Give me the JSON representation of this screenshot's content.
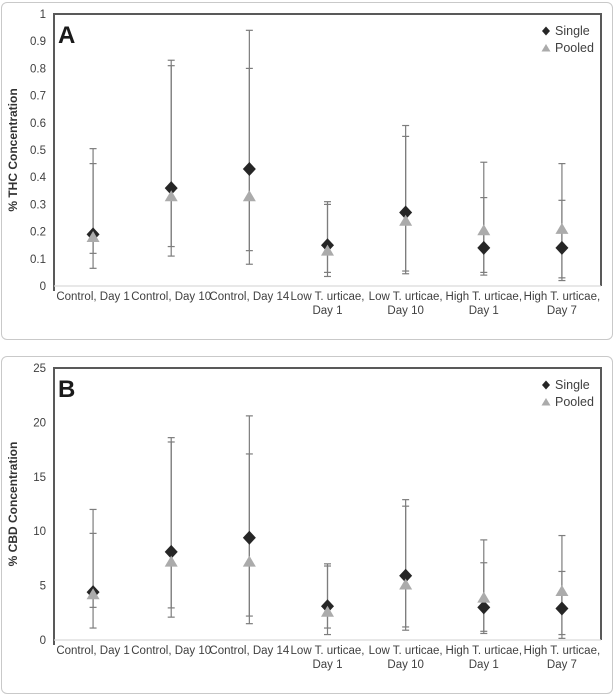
{
  "figure": {
    "background": "#ffffff",
    "panel_border_color": "#c9c9c9"
  },
  "chart_data": [
    {
      "type": "scatter",
      "panel_label": "A",
      "ylabel": "% THC Concentration",
      "ylim": [
        0,
        1
      ],
      "ytick_values": [
        0,
        0.1,
        0.2,
        0.3,
        0.4,
        0.5,
        0.6,
        0.7,
        0.8,
        0.9,
        1
      ],
      "ytick_labels": [
        "0",
        "0.1",
        "0.2",
        "0.3",
        "0.4",
        "0.5",
        "0.6",
        "0.7",
        "0.8",
        "0.9",
        "1"
      ],
      "grid": false,
      "legend_position": "top-right",
      "categories": [
        [
          "Control, Day 1"
        ],
        [
          "Control, Day 10"
        ],
        [
          "Control, Day 14"
        ],
        [
          "Low T. urticae,",
          "Day 1"
        ],
        [
          "Low T. urticae,",
          "Day 10"
        ],
        [
          "High T. urticae,",
          "Day 1"
        ],
        [
          "High T. urticae,",
          "Day 7"
        ]
      ],
      "series": [
        {
          "name": "Single",
          "marker": "diamond",
          "color": "#262626",
          "values": [
            0.19,
            0.36,
            0.43,
            0.15,
            0.27,
            0.14,
            0.14
          ],
          "error_low": [
            0.065,
            0.11,
            0.08,
            0.035,
            0.055,
            0.04,
            0.02
          ],
          "error_high": [
            0.505,
            0.83,
            0.94,
            0.31,
            0.59,
            0.325,
            0.315
          ]
        },
        {
          "name": "Pooled",
          "marker": "triangle",
          "color": "#ababab",
          "values": [
            0.18,
            0.33,
            0.33,
            0.13,
            0.24,
            0.205,
            0.21
          ],
          "error_low": [
            0.12,
            0.145,
            0.13,
            0.05,
            0.045,
            0.05,
            0.03
          ],
          "error_high": [
            0.45,
            0.81,
            0.8,
            0.3,
            0.55,
            0.455,
            0.45
          ]
        }
      ],
      "colors": {
        "axis": "#595959",
        "axis_bottom": "#d9d9d9",
        "error_bar": "#7d7d7d",
        "text": "#404040",
        "panel_label": "#1a1a1a"
      }
    },
    {
      "type": "scatter",
      "panel_label": "B",
      "ylabel": "% CBD Concentration",
      "ylim": [
        0,
        25
      ],
      "ytick_values": [
        0,
        5,
        10,
        15,
        20,
        25
      ],
      "ytick_labels": [
        "0",
        "5",
        "10",
        "15",
        "20",
        "25"
      ],
      "grid": false,
      "legend_position": "top-right",
      "categories": [
        [
          "Control, Day 1"
        ],
        [
          "Control, Day 10"
        ],
        [
          "Control, Day 14"
        ],
        [
          "Low T. urticae,",
          "Day 1"
        ],
        [
          "Low T. urticae,",
          "Day 10"
        ],
        [
          "High T. urticae,",
          "Day 1"
        ],
        [
          "High T. urticae,",
          "Day 7"
        ]
      ],
      "series": [
        {
          "name": "Single",
          "marker": "diamond",
          "color": "#262626",
          "values": [
            4.4,
            8.1,
            9.4,
            3.1,
            5.9,
            3.0,
            2.9
          ],
          "error_low": [
            1.1,
            2.1,
            1.5,
            0.5,
            0.9,
            0.6,
            0.15
          ],
          "error_high": [
            12.0,
            18.6,
            20.6,
            7.0,
            12.9,
            7.1,
            6.3
          ]
        },
        {
          "name": "Pooled",
          "marker": "triangle",
          "color": "#ababab",
          "values": [
            4.2,
            7.2,
            7.2,
            2.6,
            5.1,
            3.9,
            4.5
          ],
          "error_low": [
            3.0,
            2.95,
            2.2,
            1.1,
            1.2,
            0.8,
            0.5
          ],
          "error_high": [
            9.8,
            18.2,
            17.1,
            6.8,
            12.3,
            9.2,
            9.6
          ]
        }
      ],
      "colors": {
        "axis": "#595959",
        "axis_bottom": "#d9d9d9",
        "error_bar": "#7d7d7d",
        "text": "#404040",
        "panel_label": "#1a1a1a"
      }
    }
  ]
}
